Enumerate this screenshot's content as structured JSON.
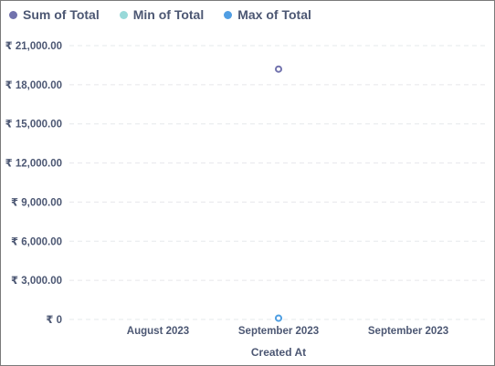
{
  "chart_data": {
    "type": "scatter",
    "xlabel": "Created At",
    "ylabel": "",
    "x_categories": [
      "August 2023",
      "September 2023",
      "September 2023"
    ],
    "ylim": [
      0,
      21000
    ],
    "y_ticks": [
      0,
      3000,
      6000,
      9000,
      12000,
      15000,
      18000,
      21000
    ],
    "y_tick_labels": [
      "₹ 0",
      "₹ 3,000.00",
      "₹ 6,000.00",
      "₹ 9,000.00",
      "₹ 12,000.00",
      "₹ 15,000.00",
      "₹ 18,000.00",
      "₹ 21,000.00"
    ],
    "grid": true,
    "legend_position": "top-left",
    "series": [
      {
        "name": "Sum of Total",
        "color": "#7172ad",
        "points": [
          {
            "x": "September 2023",
            "y": 19200
          }
        ]
      },
      {
        "name": "Min of Total",
        "color": "#98d9d9",
        "points": [
          {
            "x": "September 2023",
            "y": 100
          }
        ]
      },
      {
        "name": "Max of Total",
        "color": "#509ee3",
        "points": [
          {
            "x": "September 2023",
            "y": 100
          }
        ]
      }
    ]
  }
}
